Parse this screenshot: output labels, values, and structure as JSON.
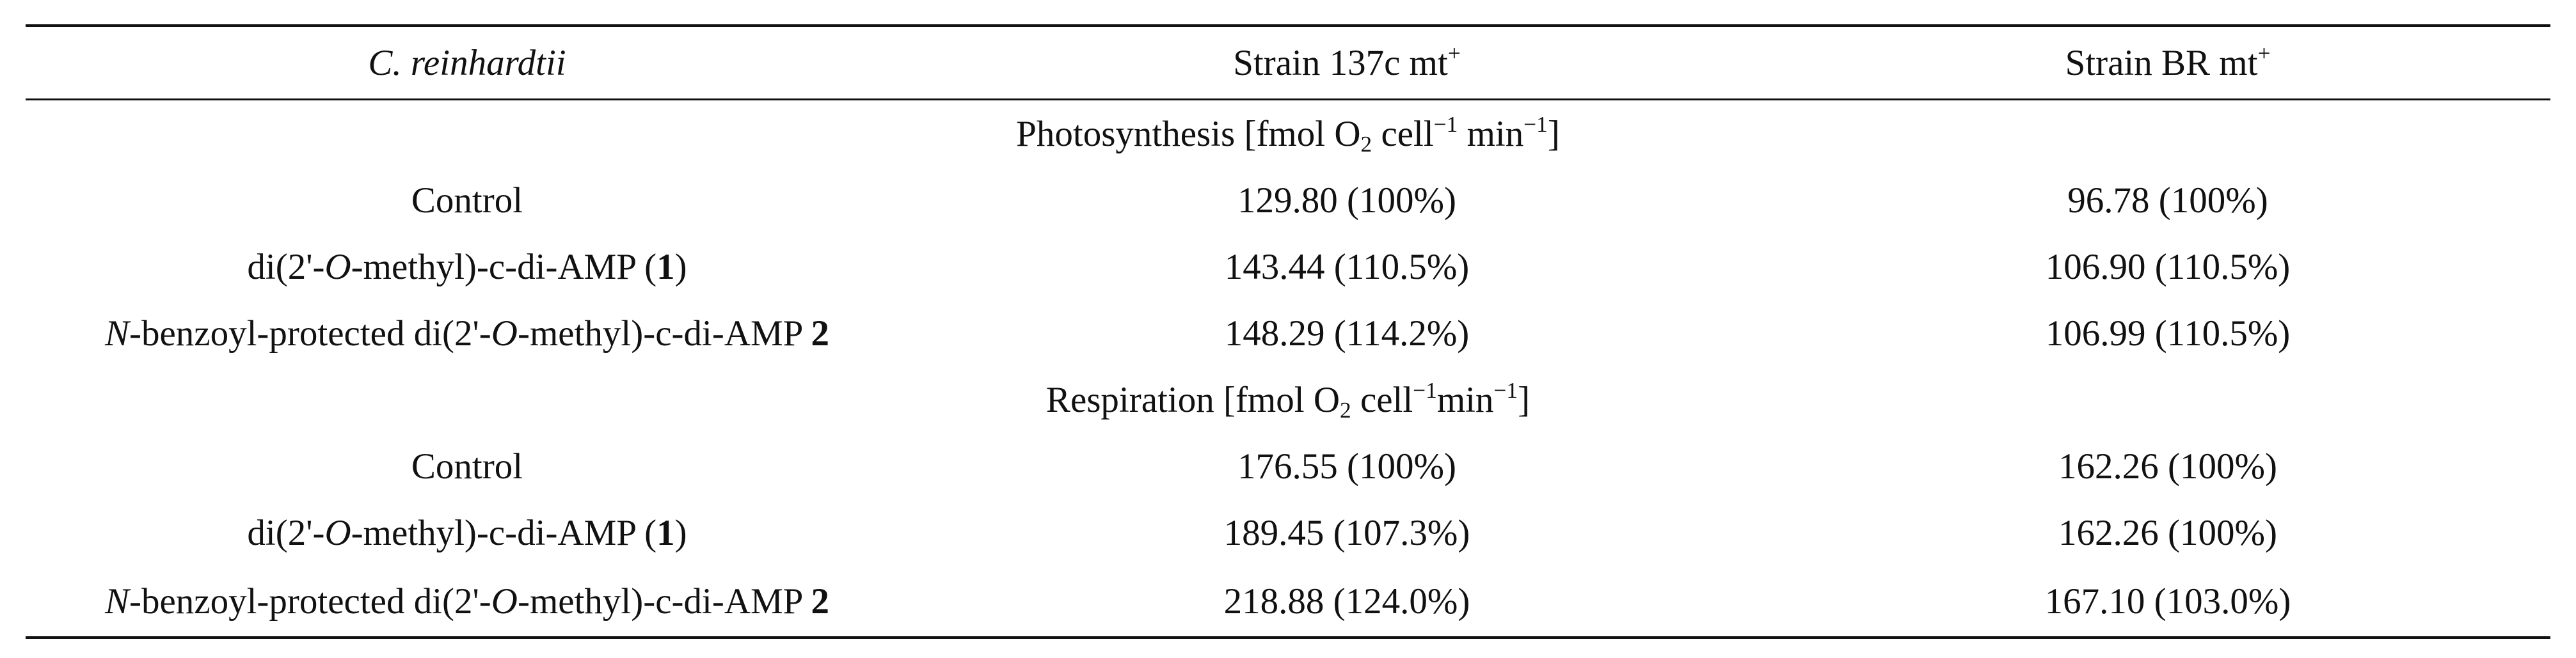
{
  "header": {
    "col1": "C. reinhardtii",
    "col2_base": "Strain 137c mt",
    "col2_sup": "+",
    "col3_base": "Strain BR mt",
    "col3_sup": "+"
  },
  "sections": [
    {
      "title_pre": "Photosynthesis [fmol O",
      "title_sub": "2",
      "title_mid": " cell",
      "title_sup1": "−1",
      "title_mid2": " min",
      "title_sup2": "−1",
      "title_post": "]",
      "rows": [
        {
          "label_plain": "Control",
          "strain_137c": "129.80 (100%)",
          "strain_br": "96.78 (100%)"
        },
        {
          "label_a": "di(2'-",
          "label_b": "O",
          "label_c": "-methyl)-c-di-AMP (",
          "label_d": "1",
          "label_e": ")",
          "strain_137c": "143.44 (110.5%)",
          "strain_br": "106.90 (110.5%)"
        },
        {
          "label_a": "N",
          "label_b": "-benzoyl-protected di(2'-",
          "label_c": "O",
          "label_d": "-methyl)-c-di-AMP ",
          "label_e": "2",
          "strain_137c": "148.29 (114.2%)",
          "strain_br": "106.99 (110.5%)"
        }
      ]
    },
    {
      "title_pre": "Respiration [fmol O",
      "title_sub": "2",
      "title_mid": " cell",
      "title_sup1": "−1",
      "title_mid2": "min",
      "title_sup2": "−1",
      "title_post": "]",
      "rows": [
        {
          "label_plain": "Control",
          "strain_137c": "176.55 (100%)",
          "strain_br": "162.26 (100%)"
        },
        {
          "label_a": "di(2'-",
          "label_b": "O",
          "label_c": "-methyl)-c-di-AMP (",
          "label_d": "1",
          "label_e": ")",
          "strain_137c": "189.45 (107.3%)",
          "strain_br": "162.26 (100%)"
        },
        {
          "label_a": "N",
          "label_b": "-benzoyl-protected di(2'-",
          "label_c": "O",
          "label_d": "-methyl)-c-di-AMP ",
          "label_e": "2",
          "strain_137c": "218.88 (124.0%)",
          "strain_br": "167.10 (103.0%)"
        }
      ]
    }
  ]
}
